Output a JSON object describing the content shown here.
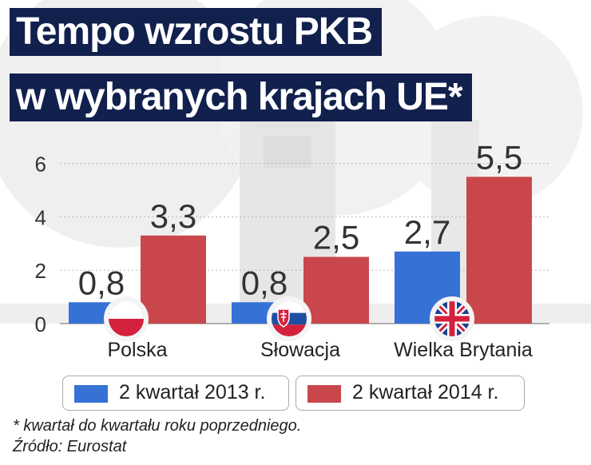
{
  "title": {
    "line1": "Tempo wzrostu PKB",
    "line2": "w wybranych krajach UE*"
  },
  "chart_data": {
    "type": "bar",
    "categories": [
      "Polska",
      "Słowacja",
      "Wielka Brytania"
    ],
    "series": [
      {
        "name": "2 kwartał 2013 r.",
        "values": [
          0.8,
          0.8,
          2.7
        ],
        "labels": [
          "0,8",
          "0,8",
          "2,7"
        ],
        "color": "#3671d6"
      },
      {
        "name": "2 kwartał 2014 r.",
        "values": [
          3.3,
          2.5,
          5.5
        ],
        "labels": [
          "3,3",
          "2,5",
          "5,5"
        ],
        "color": "#c9474b"
      }
    ],
    "yticks": [
      "0",
      "2",
      "4",
      "6"
    ],
    "ylim": [
      0,
      6.5
    ],
    "grid": true,
    "legend_position": "bottom",
    "category_icons": [
      "flag-poland-icon",
      "flag-slovakia-icon",
      "flag-uk-icon"
    ]
  },
  "footnotes": {
    "note": "* kwartał do kwartału roku poprzedniego.",
    "source": "Źródło: Eurostat"
  },
  "colors": {
    "title_bg": "#12204e",
    "series_2013": "#3671d6",
    "series_2014": "#c9474b"
  }
}
